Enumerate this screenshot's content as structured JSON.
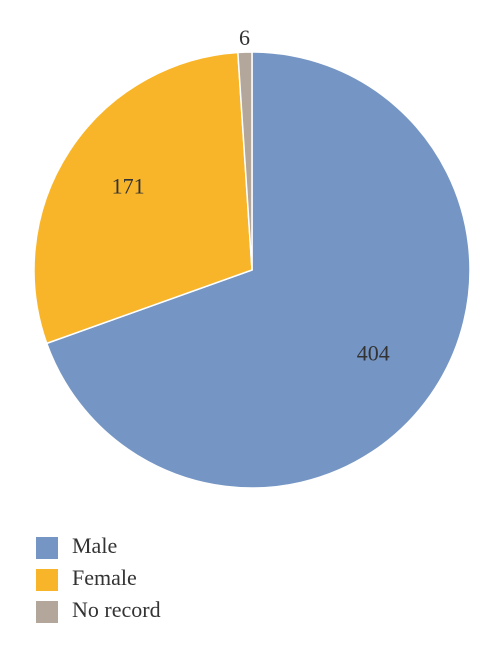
{
  "chart_data": {
    "type": "pie",
    "categories": [
      "Male",
      "Female",
      "No record"
    ],
    "values": [
      404,
      171,
      6
    ],
    "colors": [
      "#7596c4",
      "#f8b52a",
      "#b3a69a"
    ],
    "start_angle": 0,
    "direction": "clockwise",
    "legend": "bottom-left"
  }
}
